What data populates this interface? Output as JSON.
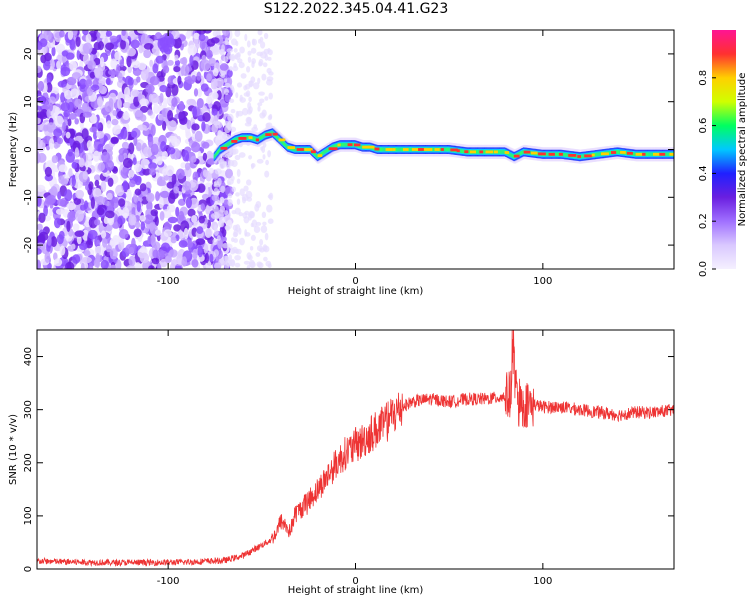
{
  "page": {
    "title": "S122.2022.345.04.41.G23"
  },
  "colors": {
    "snr_line": "#ee3333",
    "colormap": [
      "#f5f0ff",
      "#d9c8ff",
      "#a070ff",
      "#6a1fe0",
      "#2020ff",
      "#00c8ff",
      "#00ff60",
      "#d0ff00",
      "#ffd000",
      "#ff3030",
      "#ff1493"
    ]
  },
  "chart_data": [
    {
      "type": "heatmap",
      "title": "",
      "xlabel": "Height of straight line (km)",
      "ylabel": "Frequency (Hz)",
      "xlim": [
        -170,
        170
      ],
      "ylim": [
        -25,
        25
      ],
      "xticks": [
        -100,
        0,
        100
      ],
      "yticks": [
        -20,
        -10,
        0,
        10,
        20
      ],
      "grid": false,
      "noise_region_x": [
        -170,
        -75
      ],
      "ridge": {
        "x": [
          -75,
          -72,
          -68,
          -64,
          -60,
          -56,
          -52,
          -48,
          -44,
          -40,
          -36,
          -32,
          -28,
          -24,
          -20,
          -16,
          -12,
          -8,
          -4,
          0,
          4,
          8,
          12,
          20,
          30,
          40,
          50,
          60,
          70,
          80,
          85,
          90,
          100,
          110,
          120,
          130,
          140,
          150,
          160,
          170
        ],
        "freq_hz": [
          -1.5,
          0,
          1,
          2,
          2.5,
          2.5,
          2,
          3,
          3.5,
          2,
          0.5,
          0,
          0,
          0,
          -1.5,
          -0.5,
          0.5,
          1,
          1,
          1,
          0.5,
          0.5,
          0,
          0,
          0,
          0,
          0,
          -0.5,
          -0.5,
          -0.5,
          -1.5,
          -0.5,
          -1,
          -1,
          -1.5,
          -1,
          -0.5,
          -1,
          -1,
          -1
        ]
      },
      "colorbar": {
        "label": "Normalized spectral amplitude",
        "range": [
          0,
          1
        ],
        "ticks": [
          "0.0",
          "0.2",
          "0.4",
          "0.6",
          "0.8"
        ]
      }
    },
    {
      "type": "line",
      "title": "",
      "xlabel": "Height of straight line (km)",
      "ylabel": "SNR (10 * v/v)",
      "xlim": [
        -170,
        170
      ],
      "ylim": [
        0,
        450
      ],
      "xticks": [
        -100,
        0,
        100
      ],
      "yticks": [
        0,
        100,
        200,
        300,
        400
      ],
      "grid": false,
      "series": [
        {
          "x": [
            -170,
            -150,
            -130,
            -110,
            -90,
            -70,
            -60,
            -50,
            -45,
            -42,
            -40,
            -38,
            -35,
            -32,
            -30,
            -25,
            -20,
            -15,
            -10,
            -5,
            0,
            5,
            10,
            15,
            20,
            25,
            30,
            40,
            50,
            60,
            70,
            80,
            83,
            84,
            86,
            88,
            90,
            95,
            100,
            110,
            120,
            130,
            140,
            150,
            160,
            170
          ],
          "values": [
            15,
            13,
            12,
            12,
            13,
            16,
            25,
            45,
            55,
            70,
            90,
            85,
            70,
            105,
            110,
            130,
            150,
            175,
            200,
            220,
            230,
            245,
            260,
            270,
            290,
            305,
            315,
            320,
            315,
            320,
            320,
            325,
            330,
            410,
            320,
            305,
            310,
            310,
            305,
            305,
            300,
            295,
            290,
            295,
            295,
            300
          ]
        }
      ]
    }
  ]
}
